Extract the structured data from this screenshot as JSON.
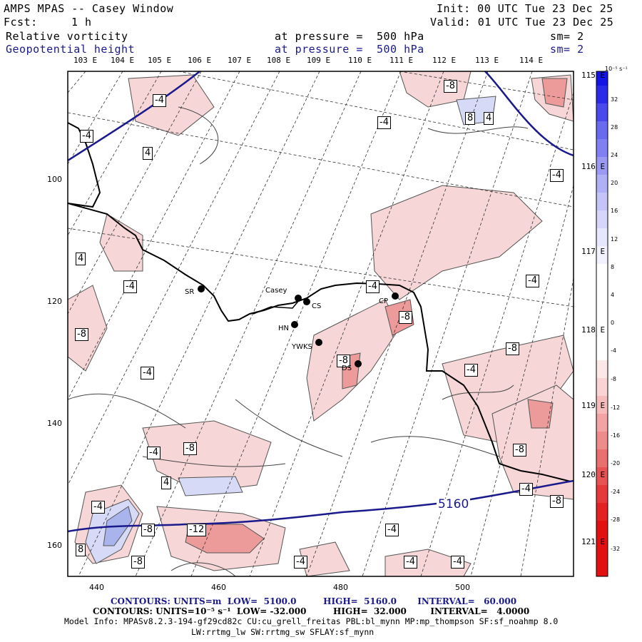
{
  "header": {
    "title": "AMPS MPAS -- Casey Window",
    "fcst_label": "Fcst:",
    "fcst_value": "1 h",
    "init": "Init: 00 UTC Tue 23 Dec 25",
    "valid": "Valid: 01 UTC Tue 23 Dec 25",
    "field1_name": "Relative vorticity",
    "field1_level": "at pressure =  500 hPa",
    "field1_sm": "sm= 2",
    "field2_name": "Geopotential height",
    "field2_level": "at pressure =  500 hPa",
    "field2_sm": "sm= 2"
  },
  "map": {
    "lon_labels_top": [
      "103 E",
      "104 E",
      "105 E",
      "106 E",
      "107 E",
      "108 E",
      "109 E",
      "110 E",
      "111 E",
      "112 E",
      "113 E",
      "114 E"
    ],
    "lon_labels_right": [
      "115 E",
      "116 E",
      "117 E",
      "118 E",
      "119 E",
      "120 E",
      "121 E"
    ],
    "x_ticks": [
      "440",
      "460",
      "480",
      "500"
    ],
    "y_ticks": [
      "100",
      "120",
      "140",
      "160"
    ],
    "height_contour_label": "5160",
    "vort_contour_labels": [
      "-4",
      "-8",
      "4",
      "-12",
      "8"
    ],
    "stations": [
      {
        "name": "SR"
      },
      {
        "name": "Casey"
      },
      {
        "name": "CS"
      },
      {
        "name": "HN"
      },
      {
        "name": "YWKS"
      },
      {
        "name": "DS"
      },
      {
        "name": "CP"
      }
    ],
    "colors": {
      "land_outline": "#000000",
      "height_contour": "#1a1a8c",
      "neg_vort": "#f0b0b0",
      "pos_vort": "#b0b8f0"
    }
  },
  "colorbar": {
    "unit": "10⁻⁵ s⁻¹",
    "ticks": [
      "32",
      "28",
      "24",
      "20",
      "16",
      "12",
      "8",
      "4",
      "0",
      "-4",
      "-8",
      "-12",
      "-16",
      "-20",
      "-24",
      "-28",
      "-32"
    ]
  },
  "footer": {
    "line1": "CONTOURS: UNITS=m  LOW=  5100.0         HIGH=  5160.0       INTERVAL=   60.000",
    "line2": "CONTOURS: UNITS=10⁻⁵ s⁻¹  LOW= -32.000         HIGH=  32.000        INTERVAL=   4.0000",
    "line3": "Model Info: MPASv8.2.3-194-gf29cd82c CU:cu_grell_freitas PBL:bl_mynn MP:mp_thompson SF:sf_noahmp 8.0",
    "line4": "LW:rrtmg_lw SW:rrtmg_sw SFLAY:sf_mynn"
  }
}
